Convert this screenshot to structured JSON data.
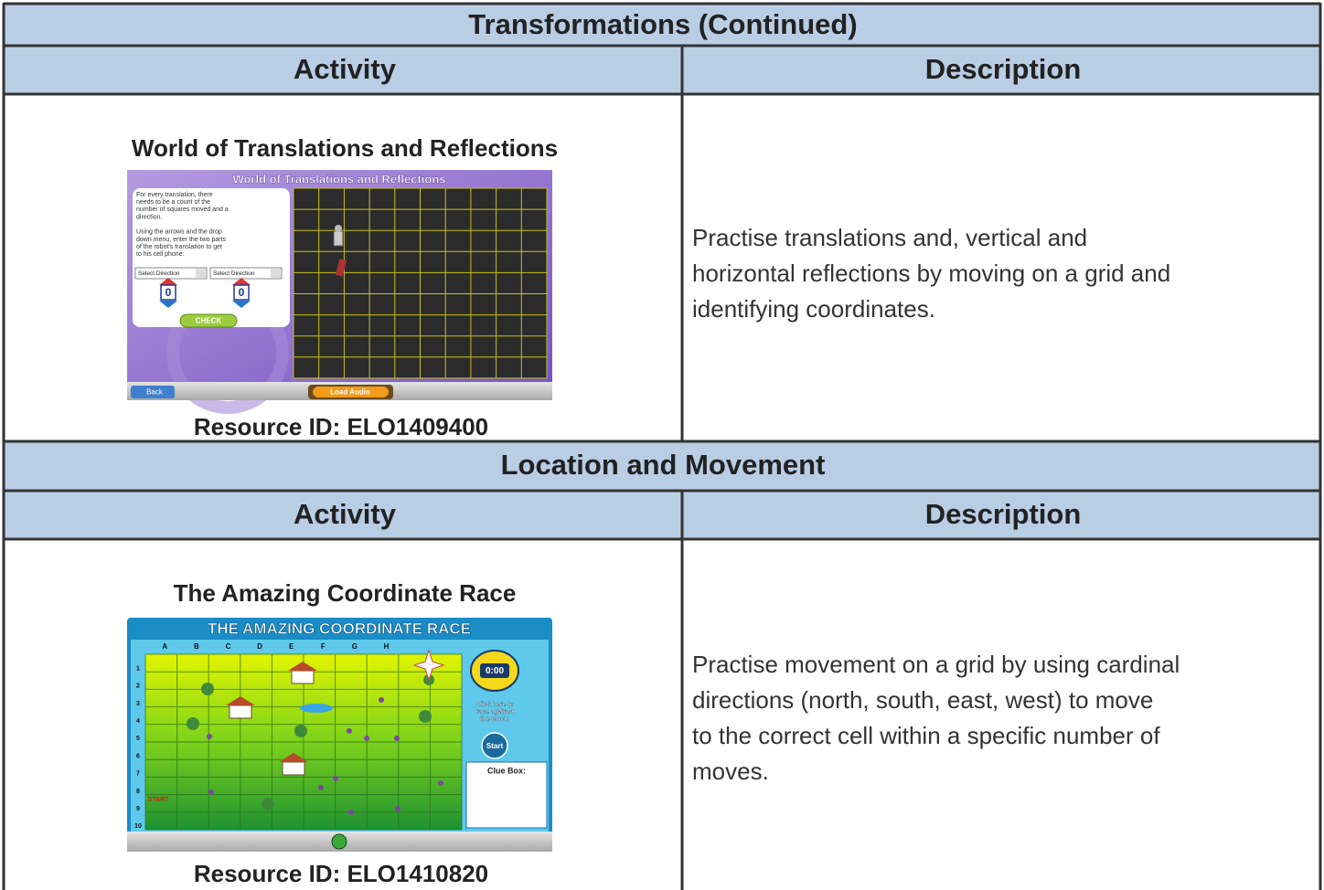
{
  "sections": [
    {
      "title": "Transformations (Continued)",
      "headers": [
        "Activity",
        "Description"
      ],
      "activity_title": "World of Translations and Reflections",
      "screenshot": {
        "title": "World of Translations and Reflections",
        "instructions": [
          "For every translation, there",
          "needs to be a count of the",
          "number of squares moved and a",
          "direction.",
          "Using the arrows and the drop",
          "down menu, enter the two parts",
          "of the robot's translation to get",
          "to his cell phone:"
        ],
        "selects": [
          "Select Direction",
          "Select Direction"
        ],
        "counters": [
          0,
          0
        ],
        "check_button": "CHECK",
        "back_button": "Back",
        "audio_button": "Load Audio"
      },
      "resource_id": "Resource ID: ELO1409400",
      "description_lines": [
        "Practise translations and, vertical and",
        "horizontal reflections by moving on a grid and",
        "identifying coordinates."
      ]
    },
    {
      "title": "Location and Movement",
      "headers": [
        "Activity",
        "Description"
      ],
      "activity_title": "The Amazing Coordinate Race",
      "screenshot": {
        "title": "THE AMAZING COORDINATE RACE",
        "columns": [
          "A",
          "B",
          "C",
          "D",
          "E",
          "F",
          "G",
          "H"
        ],
        "rows": [
          1,
          2,
          3,
          4,
          5,
          6,
          7,
          8,
          9,
          10
        ],
        "timer": "0:00",
        "timer_prompt": [
          "Click here to",
          "race against",
          "the clock."
        ],
        "start_button": "Start",
        "clue_box": "Clue Box:",
        "start_label": "START"
      },
      "resource_id": "Resource ID: ELO1410820",
      "description_lines": [
        "Practise movement on a grid by using cardinal",
        "directions (north, south, east, west) to move",
        "to the correct cell within a specific number of",
        "moves."
      ]
    }
  ]
}
